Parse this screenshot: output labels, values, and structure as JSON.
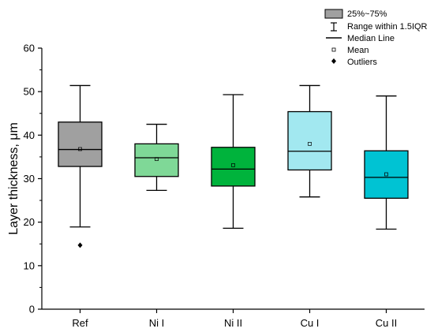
{
  "chart_data": {
    "type": "box",
    "title": "",
    "xlabel": "",
    "ylabel": "Layer thickness, μm",
    "ylim": [
      0,
      60
    ],
    "yticks": [
      0,
      10,
      20,
      30,
      40,
      50,
      60
    ],
    "grid": false,
    "legend_position": "top-right",
    "categories": [
      "Ref",
      "Ni I",
      "Ni II",
      "Cu I",
      "Cu II"
    ],
    "boxes": [
      {
        "category": "Ref",
        "whisker_low": 18.9,
        "q1": 32.8,
        "median": 36.7,
        "q3": 43.0,
        "whisker_high": 51.4,
        "mean": 36.8,
        "outliers": [
          14.7
        ],
        "color": "#a0a0a0"
      },
      {
        "category": "Ni I",
        "whisker_low": 27.3,
        "q1": 30.5,
        "median": 34.8,
        "q3": 38.0,
        "whisker_high": 42.5,
        "mean": 34.5,
        "outliers": [],
        "color": "#7fd897"
      },
      {
        "category": "Ni II",
        "whisker_low": 18.6,
        "q1": 28.3,
        "median": 32.2,
        "q3": 37.2,
        "whisker_high": 49.3,
        "mean": 33.1,
        "outliers": [],
        "color": "#00b33c"
      },
      {
        "category": "Cu I",
        "whisker_low": 25.8,
        "q1": 32.0,
        "median": 36.3,
        "q3": 45.4,
        "whisker_high": 51.4,
        "mean": 38.0,
        "outliers": [],
        "color": "#a2e8f0"
      },
      {
        "category": "Cu II",
        "whisker_low": 18.4,
        "q1": 25.5,
        "median": 30.3,
        "q3": 36.4,
        "whisker_high": 49.0,
        "mean": 31.0,
        "outliers": [],
        "color": "#00c3d3"
      }
    ],
    "legend": {
      "box": "25%~75%",
      "range": "Range within 1.5IQR",
      "median": "Median Line",
      "mean": "Mean",
      "outliers": "Outliers"
    }
  }
}
